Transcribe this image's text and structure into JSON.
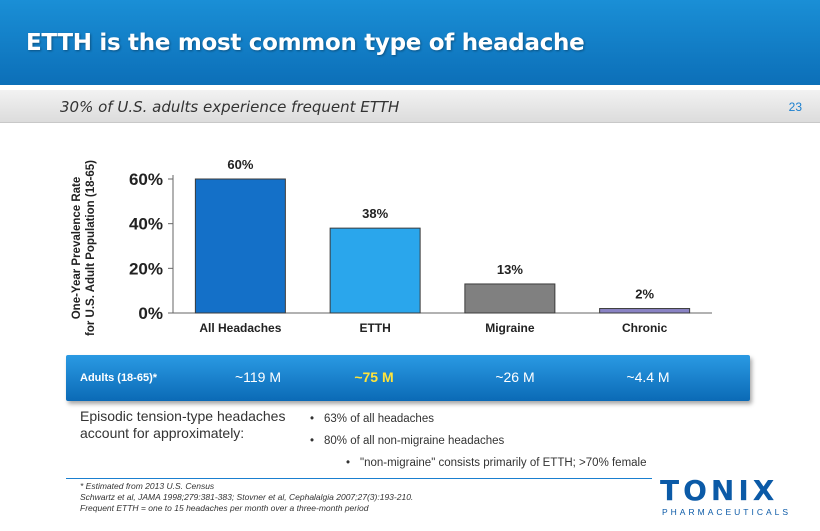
{
  "header": {
    "title": "ETTH is the most common type of headache"
  },
  "subtitle": "30% of U.S. adults experience frequent ETTH",
  "page_number": "23",
  "chart_data": {
    "type": "bar",
    "title": "",
    "ylabel_line1": "One-Year Prevalence Rate",
    "ylabel_line2": "for U.S. Adult Population (18-65)",
    "categories": [
      "All Headaches",
      "ETTH",
      "Migraine",
      "Chronic"
    ],
    "values": [
      60,
      38,
      13,
      2
    ],
    "value_labels": [
      "60%",
      "38%",
      "13%",
      "2%"
    ],
    "bar_colors": [
      "#1470c8",
      "#2aa6ec",
      "#808080",
      "#8a83c4"
    ],
    "yticks": [
      0,
      20,
      40,
      60
    ],
    "ytick_labels": [
      "0%",
      "20%",
      "40%",
      "60%"
    ],
    "ylim": [
      0,
      60
    ],
    "grid": false,
    "legend": "none"
  },
  "adults": {
    "label": "Adults (18-65)*",
    "values": [
      "~119 M",
      "~75 M",
      "~26 M",
      "~4.4 M"
    ]
  },
  "note": {
    "left": "Episodic tension-type headaches account for approximately:",
    "b1": "63% of all headaches",
    "b2": "80% of all non-migraine headaches",
    "b3": "\"non-migraine\" consists primarily of ETTH; >70% female"
  },
  "footnotes": {
    "f1": "* Estimated from 2013 U.S. Census",
    "f2": "Schwartz et al, JAMA 1998;279:381-383; Stovner et al, Cephalalgia 2007;27(3):193-210.",
    "f3": "Frequent ETTH = one to 15 headaches per month over a three-month period"
  },
  "logo": {
    "word": "TONIX",
    "sub": "PHARMACEUTICALS"
  }
}
